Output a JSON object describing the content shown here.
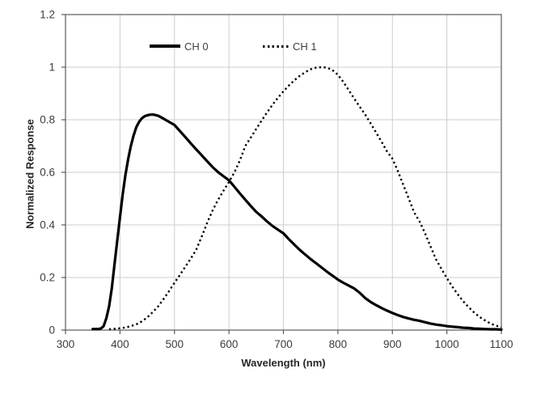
{
  "figure": {
    "background": "#ffffff",
    "plot_background": "#ffffff"
  },
  "legend": {
    "position": "top-inside",
    "items": [
      {
        "label": "CH 0",
        "line_style": "solid",
        "color": "#000000"
      },
      {
        "label": "CH 1",
        "line_style": "dotted",
        "color": "#000000"
      }
    ]
  },
  "chart_data": {
    "type": "line",
    "title": "",
    "xlabel": "Wavelength (nm)",
    "ylabel": "Normalized Response",
    "xlim": [
      300,
      1100
    ],
    "ylim": [
      0,
      1.2
    ],
    "grid": true,
    "x_ticks": [
      300,
      400,
      500,
      600,
      700,
      800,
      900,
      1000,
      1100
    ],
    "x_tick_labels": [
      "300",
      "400",
      "500",
      "600",
      "700",
      "800",
      "900",
      "1000",
      "1100"
    ],
    "y_ticks": [
      0,
      0.2,
      0.4,
      0.6,
      0.8,
      1,
      1.2
    ],
    "y_tick_labels": [
      "0",
      "0.2",
      "0.4",
      "0.6",
      "0.8",
      "1",
      "1.2"
    ],
    "colors": {
      "gridline": "#cdcdcd",
      "axis_border": "#5a5a5a",
      "tick_label": "#3d3d3d",
      "axis_title": "#262626",
      "series": "#000000"
    },
    "series": [
      {
        "name": "CH 0",
        "style": "solid",
        "color": "#000000",
        "x": [
          350,
          355,
          360,
          365,
          370,
          375,
          380,
          385,
          390,
          395,
          400,
          405,
          410,
          415,
          420,
          425,
          430,
          435,
          440,
          445,
          450,
          455,
          460,
          465,
          470,
          475,
          480,
          485,
          490,
          495,
          500,
          510,
          520,
          530,
          540,
          550,
          560,
          570,
          580,
          590,
          600,
          610,
          620,
          630,
          640,
          650,
          660,
          670,
          680,
          690,
          700,
          710,
          720,
          730,
          740,
          750,
          760,
          770,
          780,
          790,
          800,
          810,
          820,
          830,
          840,
          850,
          860,
          870,
          880,
          890,
          900,
          910,
          920,
          930,
          940,
          950,
          960,
          970,
          980,
          990,
          1000,
          1010,
          1020,
          1030,
          1040,
          1050,
          1060,
          1070,
          1080,
          1090,
          1100
        ],
        "y": [
          0.004,
          0.004,
          0.004,
          0.006,
          0.015,
          0.045,
          0.09,
          0.16,
          0.25,
          0.34,
          0.43,
          0.515,
          0.59,
          0.65,
          0.7,
          0.74,
          0.772,
          0.792,
          0.805,
          0.813,
          0.817,
          0.819,
          0.82,
          0.818,
          0.815,
          0.81,
          0.804,
          0.798,
          0.792,
          0.786,
          0.78,
          0.757,
          0.734,
          0.71,
          0.687,
          0.665,
          0.642,
          0.62,
          0.601,
          0.585,
          0.57,
          0.545,
          0.52,
          0.496,
          0.472,
          0.45,
          0.432,
          0.413,
          0.396,
          0.382,
          0.368,
          0.346,
          0.325,
          0.305,
          0.287,
          0.27,
          0.254,
          0.238,
          0.222,
          0.207,
          0.192,
          0.18,
          0.169,
          0.158,
          0.142,
          0.122,
          0.107,
          0.095,
          0.084,
          0.074,
          0.065,
          0.057,
          0.05,
          0.044,
          0.039,
          0.035,
          0.03,
          0.025,
          0.021,
          0.018,
          0.015,
          0.013,
          0.011,
          0.009,
          0.008,
          0.006,
          0.005,
          0.004,
          0.003,
          0.003,
          0.002
        ]
      },
      {
        "name": "CH 1",
        "style": "dotted",
        "color": "#000000",
        "x": [
          380,
          390,
          400,
          410,
          420,
          430,
          440,
          450,
          460,
          470,
          480,
          490,
          500,
          510,
          520,
          530,
          540,
          550,
          560,
          570,
          580,
          590,
          600,
          610,
          620,
          630,
          640,
          650,
          660,
          670,
          680,
          690,
          700,
          710,
          720,
          730,
          740,
          750,
          760,
          770,
          780,
          790,
          800,
          810,
          820,
          830,
          840,
          850,
          860,
          870,
          880,
          890,
          900,
          910,
          920,
          930,
          940,
          950,
          960,
          970,
          980,
          990,
          1000,
          1010,
          1020,
          1030,
          1040,
          1050,
          1060,
          1070,
          1080,
          1090,
          1100
        ],
        "y": [
          0.003,
          0.005,
          0.007,
          0.01,
          0.015,
          0.022,
          0.033,
          0.048,
          0.068,
          0.09,
          0.118,
          0.148,
          0.18,
          0.21,
          0.241,
          0.272,
          0.306,
          0.355,
          0.408,
          0.455,
          0.495,
          0.53,
          0.563,
          0.6,
          0.645,
          0.7,
          0.732,
          0.765,
          0.797,
          0.828,
          0.857,
          0.884,
          0.908,
          0.93,
          0.95,
          0.967,
          0.981,
          0.992,
          0.998,
          1.0,
          0.998,
          0.989,
          0.971,
          0.944,
          0.912,
          0.88,
          0.85,
          0.82,
          0.786,
          0.752,
          0.717,
          0.68,
          0.652,
          0.605,
          0.553,
          0.5,
          0.447,
          0.413,
          0.368,
          0.318,
          0.27,
          0.233,
          0.198,
          0.165,
          0.136,
          0.11,
          0.087,
          0.067,
          0.05,
          0.037,
          0.025,
          0.017,
          0.011
        ]
      }
    ]
  }
}
